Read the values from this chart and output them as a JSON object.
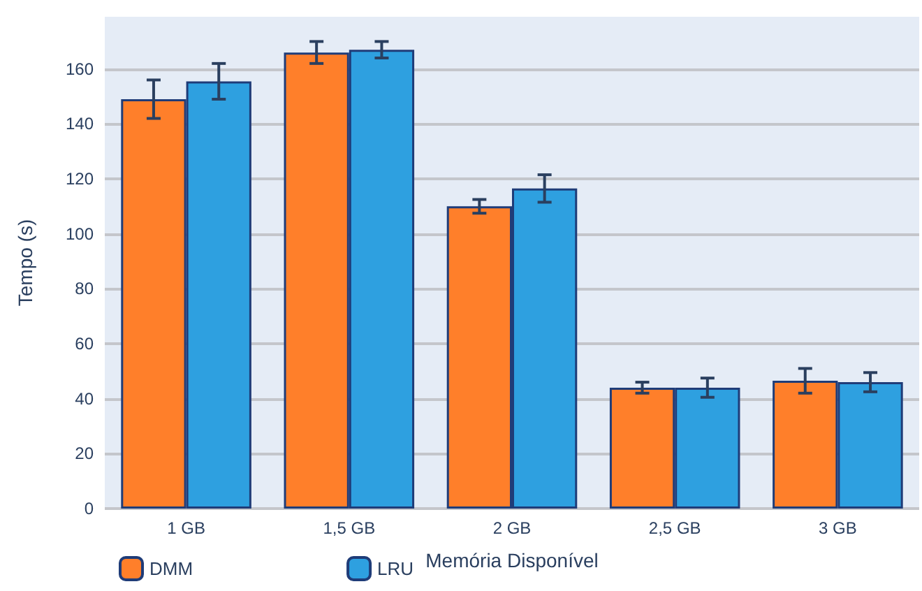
{
  "chart_data": {
    "type": "bar",
    "xlabel": "Memória Disponível",
    "ylabel": "Tempo (s)",
    "categories": [
      "1 GB",
      "1,5 GB",
      "2 GB",
      "2,5 GB",
      "3 GB"
    ],
    "series": [
      {
        "name": "DMM",
        "color": "#ff7f2a",
        "values": [
          149,
          166,
          110,
          44,
          46.5
        ],
        "errors": [
          7,
          4,
          2.5,
          2,
          4.5
        ]
      },
      {
        "name": "LRU",
        "color": "#2ea0e0",
        "values": [
          155.5,
          167,
          116.5,
          44,
          46
        ],
        "errors": [
          6.5,
          3,
          5,
          3.5,
          3.5
        ]
      }
    ],
    "ylim": [
      0,
      179
    ],
    "yticks": [
      0,
      20,
      40,
      60,
      80,
      100,
      120,
      140,
      160
    ],
    "grid": "y",
    "legend": "bottom left"
  }
}
